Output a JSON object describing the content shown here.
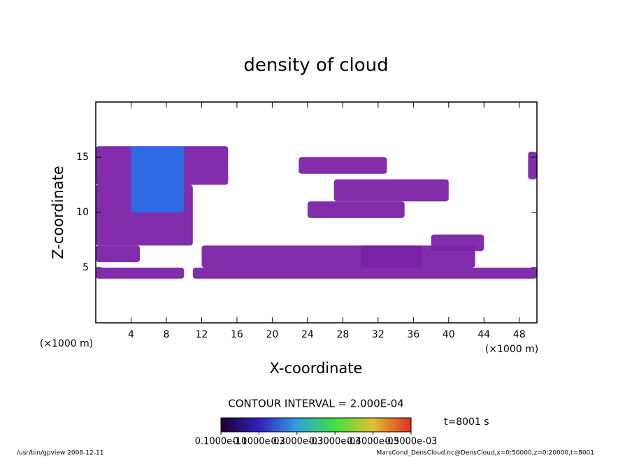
{
  "chart_data": {
    "type": "contour",
    "title": "density of cloud",
    "x_label": "X-coordinate",
    "y_label": "Z-coordinate",
    "x_unit": "(×1000 m)",
    "y_unit": "(×1000 m)",
    "xlim": [
      0,
      50
    ],
    "ylim": [
      0,
      20
    ],
    "xticks": [
      4,
      8,
      12,
      16,
      20,
      24,
      28,
      32,
      36,
      40,
      44,
      48
    ],
    "yticks": [
      5,
      10,
      15
    ],
    "color": "#7a22a8",
    "core_color": "#2a6ee8",
    "regions": [
      {
        "x": [
          0,
          15
        ],
        "z": [
          12.5,
          16
        ]
      },
      {
        "x": [
          0,
          11
        ],
        "z": [
          7,
          12.5
        ]
      },
      {
        "x": [
          0,
          5
        ],
        "z": [
          5.5,
          7
        ]
      },
      {
        "x": [
          0,
          10
        ],
        "z": [
          4,
          5
        ]
      },
      {
        "x": [
          11,
          50
        ],
        "z": [
          4,
          5
        ]
      },
      {
        "x": [
          12,
          37
        ],
        "z": [
          5,
          7
        ]
      },
      {
        "x": [
          23,
          33
        ],
        "z": [
          13.5,
          15
        ]
      },
      {
        "x": [
          27,
          40
        ],
        "z": [
          11,
          13
        ]
      },
      {
        "x": [
          24,
          35
        ],
        "z": [
          9.5,
          11
        ]
      },
      {
        "x": [
          30,
          43
        ],
        "z": [
          5,
          7
        ]
      },
      {
        "x": [
          38,
          44
        ],
        "z": [
          6.5,
          8
        ]
      },
      {
        "x": [
          49,
          50
        ],
        "z": [
          13,
          15.5
        ]
      }
    ],
    "cores": [
      {
        "x": [
          4,
          10
        ],
        "z": [
          10,
          16
        ]
      }
    ],
    "contour_interval": "CONTOUR INTERVAL = 2.000E-04",
    "time_label": "t=8001 s",
    "colorbar_ticks": [
      {
        "value": 1e-11,
        "label": "0.1000e-10"
      },
      {
        "value": 0.0001,
        "label": "0.1000e-03"
      },
      {
        "value": 0.0002,
        "label": "0.2000e-03"
      },
      {
        "value": 0.0003,
        "label": "0.3000e-03"
      },
      {
        "value": 0.0004,
        "label": "0.4000e-03"
      },
      {
        "value": 0.0005,
        "label": "0.5000e-03"
      }
    ],
    "colorbar_lim": [
      0,
      0.0005
    ],
    "footer_left": "/usr/bin/gpview   2008-12-11",
    "footer_right": "MarsCond_DensCloud.nc@DensCloud,x=0:50000,z=0:20000,t=8001"
  }
}
